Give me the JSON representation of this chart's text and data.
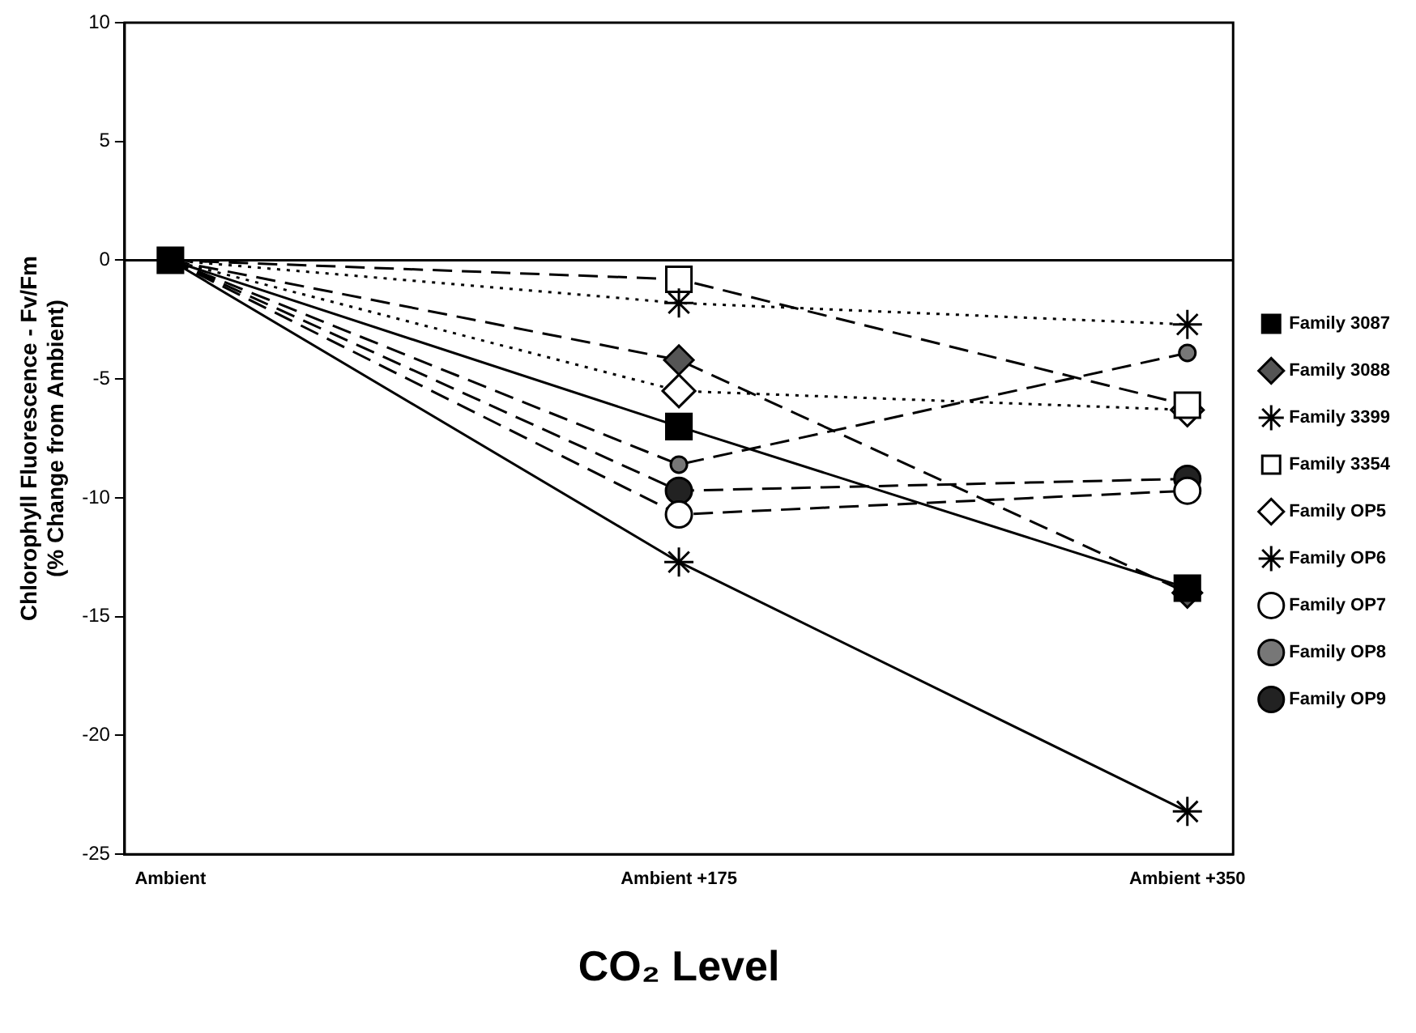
{
  "chart_data": {
    "type": "line",
    "xlabel": "CO₂ Level",
    "ylabel": "Chlorophyll Fluorescence - Fv/Fm\n(% Change from Ambient)",
    "categories": [
      "Ambient",
      "Ambient +175",
      "Ambient +350"
    ],
    "ylim": [
      -25,
      10
    ],
    "yticks": [
      -25,
      -20,
      -15,
      -10,
      -5,
      0,
      5,
      10
    ],
    "grid": false,
    "legend": "right",
    "ref_lines": [
      {
        "axis": "y",
        "value": 0,
        "label": null
      }
    ],
    "series": [
      {
        "name": "Family 3087",
        "color": "#000000",
        "marker": "square",
        "line_style": "solid",
        "values": [
          0,
          -7.0,
          -13.8
        ]
      },
      {
        "name": "Family 3088",
        "color": "#000000",
        "marker": "diamond",
        "line_style": "dashed",
        "values": [
          0,
          -4.2,
          -14.0
        ]
      },
      {
        "name": "Family 3399",
        "color": "#000000",
        "marker": "cross",
        "line_style": "dotted",
        "values": [
          0,
          -1.8,
          -2.7
        ]
      },
      {
        "name": "Family 3354",
        "color": "#000000",
        "marker": "square",
        "line_style": "dashed",
        "values": [
          0,
          -0.8,
          -6.1
        ]
      },
      {
        "name": "Family OP5",
        "color": "#000000",
        "marker": "diamond",
        "line_style": "dotted",
        "values": [
          0,
          -5.5,
          -6.3
        ]
      },
      {
        "name": "Family OP6",
        "color": "#000000",
        "marker": "cross",
        "line_style": "solid",
        "values": [
          0,
          -12.7,
          -23.2
        ]
      },
      {
        "name": "Family OP7",
        "color": "#000000",
        "marker": "circle",
        "line_style": "dashed",
        "values": [
          0,
          -10.7,
          -9.7
        ]
      },
      {
        "name": "Family OP8",
        "color": "#000000",
        "marker": "circle",
        "line_style": "dashed",
        "values": [
          0,
          -8.6,
          -3.9
        ]
      },
      {
        "name": "Family OP9",
        "color": "#000000",
        "marker": "circle",
        "line_style": "dashed",
        "values": [
          0,
          -9.7,
          -9.2
        ]
      }
    ]
  }
}
